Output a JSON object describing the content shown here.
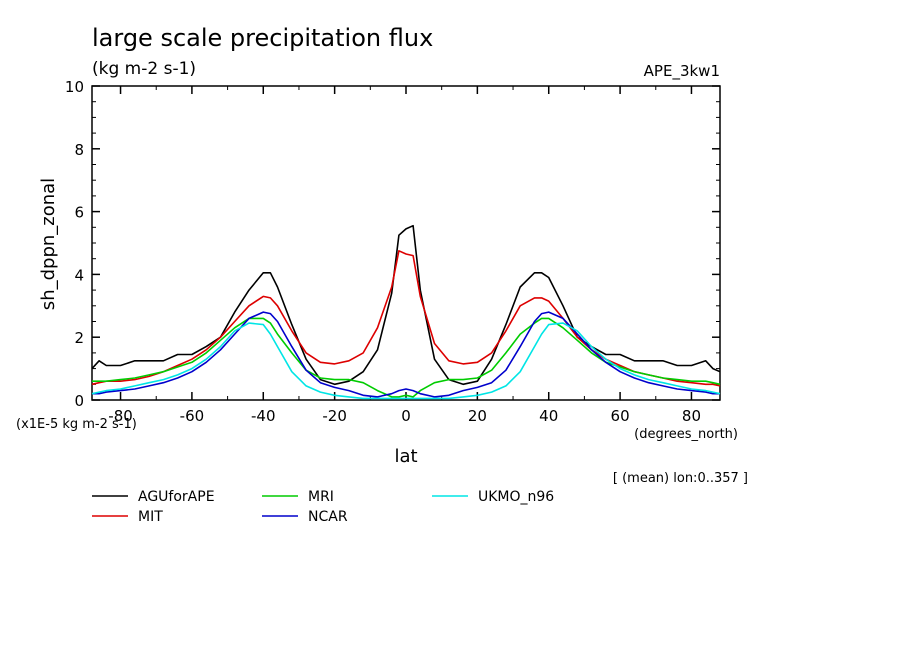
{
  "chart_data": {
    "type": "line",
    "title": "large scale precipitation flux",
    "subtitle": "(kg m-2 s-1)",
    "run_label": "APE_3kw1",
    "xlabel": "lat",
    "xunits": "(degrees_north)",
    "ylabel": "sh_dppn_zonal",
    "yunits": "(x1E-5 kg m-2 s-1)",
    "note": "[ (mean) lon:0..357 ]",
    "xlim": [
      -88,
      88
    ],
    "ylim": [
      0,
      10
    ],
    "xticks": [
      -80,
      -60,
      -40,
      -20,
      0,
      20,
      40,
      60,
      80
    ],
    "xtick_labels": [
      "-80",
      "-60",
      "-40",
      "-20",
      "0",
      "20",
      "40",
      "60",
      "80"
    ],
    "yticks": [
      0,
      2,
      4,
      6,
      8,
      10
    ],
    "ytick_labels": [
      "0",
      "2",
      "4",
      "6",
      "8",
      "10"
    ],
    "x": [
      -88,
      -86,
      -84,
      -80,
      -76,
      -72,
      -68,
      -64,
      -60,
      -56,
      -52,
      -48,
      -44,
      -40,
      -38,
      -36,
      -32,
      -28,
      -24,
      -20,
      -16,
      -12,
      -8,
      -4,
      -2,
      0,
      2,
      4,
      8,
      12,
      16,
      20,
      24,
      28,
      32,
      36,
      38,
      40,
      44,
      48,
      52,
      56,
      60,
      64,
      68,
      72,
      76,
      80,
      84,
      86,
      88
    ],
    "series": [
      {
        "name": "AGUforAPE",
        "color": "#000000",
        "values": [
          1.0,
          1.25,
          1.1,
          1.1,
          1.25,
          1.25,
          1.25,
          1.45,
          1.45,
          1.7,
          2.0,
          2.8,
          3.5,
          4.05,
          4.05,
          3.6,
          2.4,
          1.3,
          0.65,
          0.5,
          0.6,
          0.9,
          1.6,
          3.4,
          5.25,
          5.45,
          5.55,
          3.5,
          1.3,
          0.65,
          0.5,
          0.6,
          1.3,
          2.4,
          3.6,
          4.05,
          4.05,
          3.9,
          3.0,
          2.0,
          1.7,
          1.45,
          1.45,
          1.25,
          1.25,
          1.25,
          1.1,
          1.1,
          1.25,
          1.0,
          0.9
        ]
      },
      {
        "name": "MIT",
        "color": "#dd0000",
        "values": [
          0.5,
          0.55,
          0.6,
          0.6,
          0.65,
          0.75,
          0.9,
          1.1,
          1.3,
          1.6,
          2.0,
          2.5,
          3.0,
          3.3,
          3.25,
          3.0,
          2.2,
          1.5,
          1.2,
          1.15,
          1.25,
          1.5,
          2.3,
          3.6,
          4.75,
          4.65,
          4.6,
          3.3,
          1.8,
          1.25,
          1.15,
          1.2,
          1.5,
          2.2,
          3.0,
          3.25,
          3.25,
          3.15,
          2.6,
          2.0,
          1.6,
          1.3,
          1.1,
          0.9,
          0.8,
          0.7,
          0.6,
          0.55,
          0.5,
          0.5,
          0.45
        ]
      },
      {
        "name": "MRI",
        "color": "#00cc00",
        "values": [
          0.6,
          0.6,
          0.6,
          0.65,
          0.7,
          0.8,
          0.9,
          1.05,
          1.2,
          1.5,
          1.9,
          2.3,
          2.6,
          2.6,
          2.45,
          2.1,
          1.5,
          0.95,
          0.7,
          0.65,
          0.65,
          0.55,
          0.3,
          0.1,
          0.1,
          0.15,
          0.1,
          0.3,
          0.55,
          0.65,
          0.65,
          0.7,
          0.95,
          1.5,
          2.1,
          2.45,
          2.6,
          2.6,
          2.3,
          1.9,
          1.5,
          1.2,
          1.05,
          0.9,
          0.8,
          0.7,
          0.65,
          0.6,
          0.6,
          0.55,
          0.5
        ]
      },
      {
        "name": "NCAR",
        "color": "#0000cc",
        "values": [
          0.2,
          0.2,
          0.25,
          0.3,
          0.35,
          0.45,
          0.55,
          0.7,
          0.9,
          1.2,
          1.6,
          2.1,
          2.6,
          2.8,
          2.75,
          2.5,
          1.7,
          0.95,
          0.55,
          0.4,
          0.3,
          0.15,
          0.1,
          0.2,
          0.3,
          0.35,
          0.3,
          0.2,
          0.1,
          0.15,
          0.3,
          0.4,
          0.55,
          0.95,
          1.7,
          2.5,
          2.75,
          2.8,
          2.6,
          2.1,
          1.6,
          1.2,
          0.9,
          0.7,
          0.55,
          0.45,
          0.35,
          0.3,
          0.25,
          0.2,
          0.2
        ]
      },
      {
        "name": "UKMO_n96",
        "color": "#00e5e5",
        "values": [
          0.2,
          0.25,
          0.3,
          0.35,
          0.45,
          0.55,
          0.65,
          0.8,
          1.0,
          1.3,
          1.7,
          2.2,
          2.45,
          2.4,
          2.1,
          1.7,
          0.9,
          0.45,
          0.25,
          0.15,
          0.1,
          0.05,
          0.05,
          0.05,
          0.05,
          0.05,
          0.05,
          0.05,
          0.05,
          0.05,
          0.1,
          0.15,
          0.25,
          0.45,
          0.9,
          1.7,
          2.1,
          2.4,
          2.45,
          2.2,
          1.7,
          1.3,
          1.0,
          0.8,
          0.65,
          0.55,
          0.45,
          0.35,
          0.3,
          0.25,
          0.2
        ]
      }
    ],
    "legend_placement": "below-left",
    "grid": false
  }
}
